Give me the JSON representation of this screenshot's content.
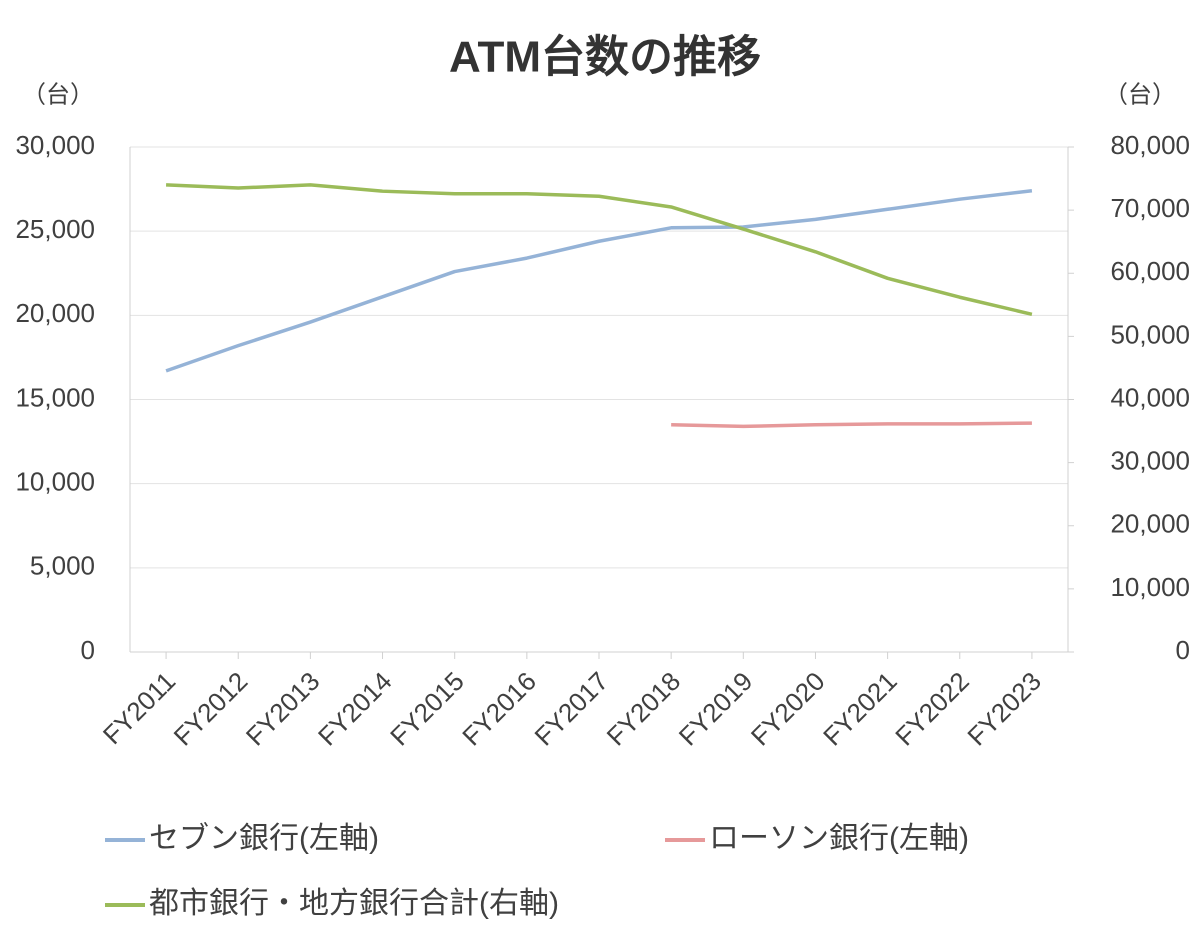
{
  "chart_data": {
    "type": "line",
    "title": "ATM台数の推移",
    "y_label": "（台）",
    "y2_label": "（台）",
    "categories": [
      "FY2011",
      "FY2012",
      "FY2013",
      "FY2014",
      "FY2015",
      "FY2016",
      "FY2017",
      "FY2018",
      "FY2019",
      "FY2020",
      "FY2021",
      "FY2022",
      "FY2023"
    ],
    "series": [
      {
        "name": "セブン銀行(左軸)",
        "color": "#95b3d7",
        "values": [
          16700,
          18200,
          19600,
          21100,
          22600,
          23400,
          24400,
          25200,
          25250,
          25700,
          26300,
          26900,
          27400
        ]
      },
      {
        "name": "ローソン銀行(左軸)",
        "color": "#e6999a",
        "values": [
          null,
          null,
          null,
          null,
          null,
          null,
          null,
          13500,
          13400,
          13500,
          13550,
          13550,
          13600
        ]
      },
      {
        "name": "都市銀行・地方銀行合計(右軸)",
        "color": "#9bbb59",
        "axis": "y2",
        "values": [
          74000,
          73500,
          74000,
          73000,
          72600,
          72600,
          72200,
          70500,
          67000,
          63400,
          59200,
          56200,
          53500
        ]
      }
    ],
    "ylim": [
      0,
      30000
    ],
    "yticks": [
      0,
      {
        "value": 5000,
        "label": "5,000"
      },
      {
        "value": 10000,
        "label": "10,000"
      },
      {
        "value": 15000,
        "label": "15,000"
      },
      {
        "value": 20000,
        "label": "20,000"
      },
      {
        "value": 25000,
        "label": "25,000"
      },
      {
        "value": 30000,
        "label": "30,000"
      }
    ],
    "y2lim": [
      0,
      80000
    ],
    "y2ticks": [
      0,
      {
        "value": 10000,
        "label": "10,000"
      },
      {
        "value": 20000,
        "label": "20,000"
      },
      {
        "value": 30000,
        "label": "30,000"
      },
      {
        "value": 40000,
        "label": "40,000"
      },
      {
        "value": 50000,
        "label": "50,000"
      },
      {
        "value": 60000,
        "label": "60,000"
      },
      {
        "value": 70000,
        "label": "70,000"
      },
      {
        "value": 80000,
        "label": "80,000"
      }
    ],
    "grid": true,
    "legend": "bottom"
  }
}
